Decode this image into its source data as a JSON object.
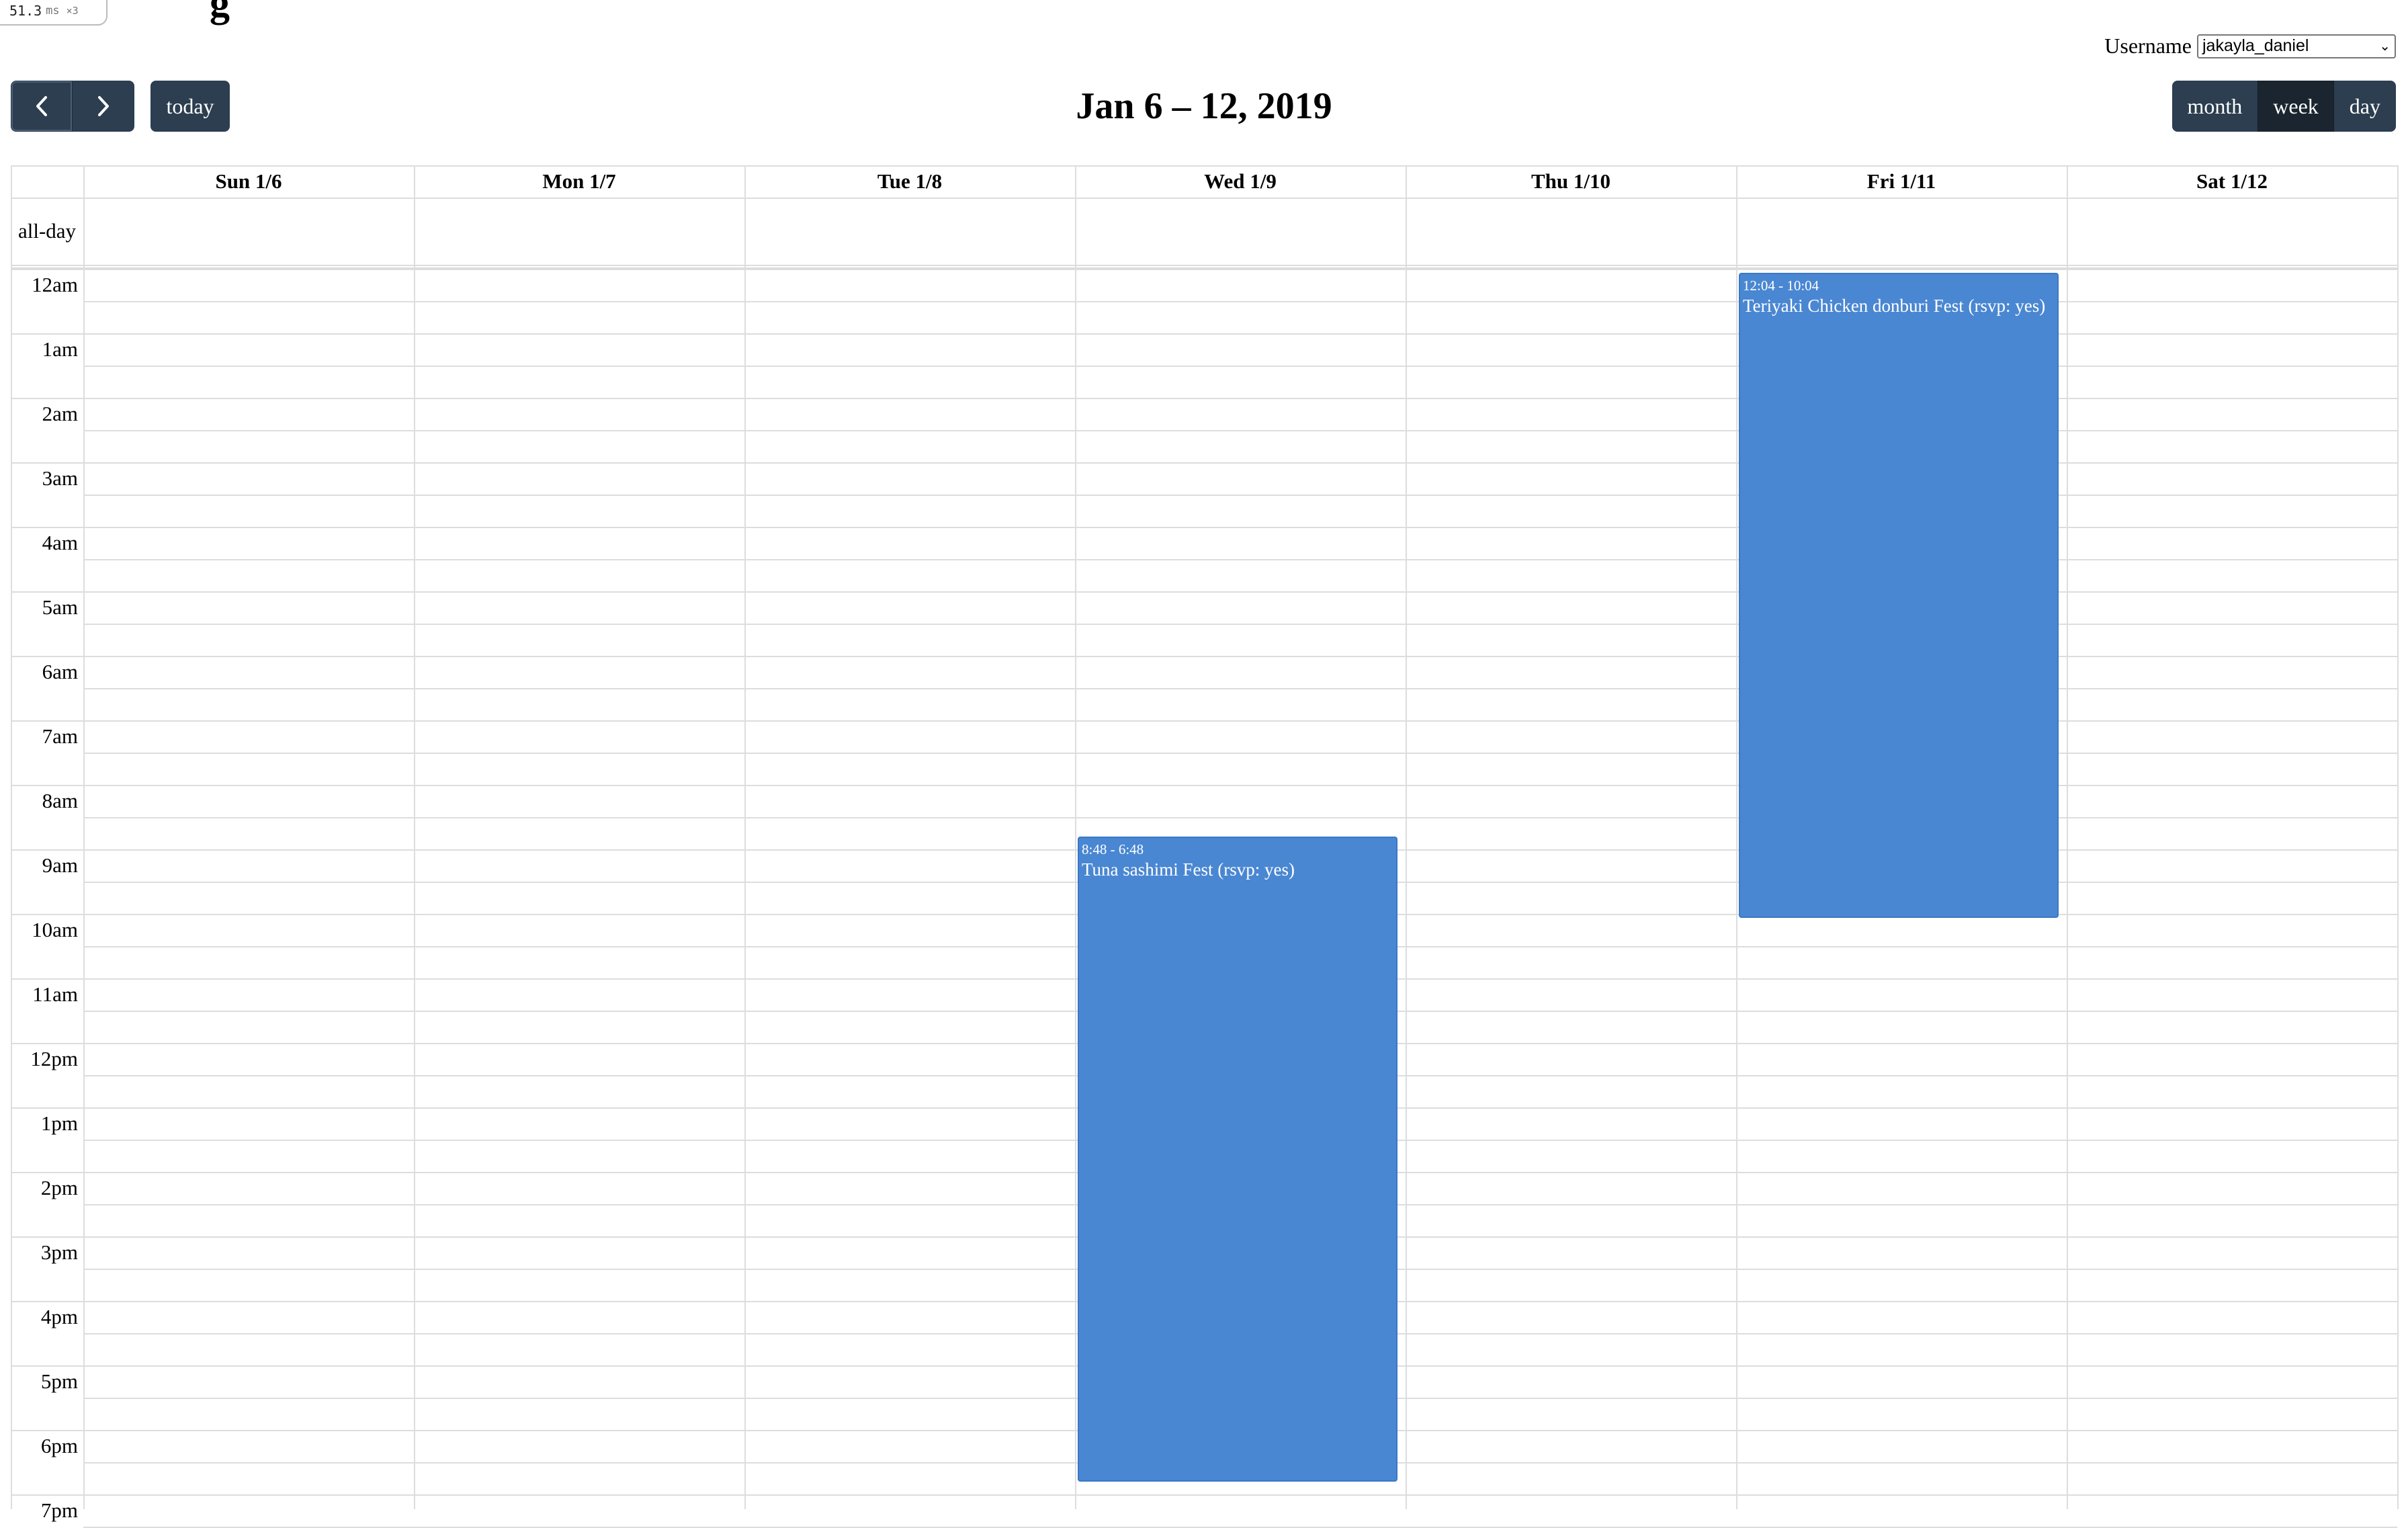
{
  "perf": {
    "value": "51.3",
    "unit": "ms",
    "mult": "×3"
  },
  "header": {
    "title_fragment": "g"
  },
  "user": {
    "label": "Username",
    "selected": "jakayla_daniel"
  },
  "toolbar": {
    "prev_label": "‹",
    "next_label": "›",
    "today_label": "today",
    "title": "Jan 6 – 12, 2019",
    "views": [
      {
        "label": "month",
        "active": false
      },
      {
        "label": "week",
        "active": true
      },
      {
        "label": "day",
        "active": false
      }
    ]
  },
  "calendar": {
    "allday_label": "all-day",
    "days": [
      "Sun 1/6",
      "Mon 1/7",
      "Tue 1/8",
      "Wed 1/9",
      "Thu 1/10",
      "Fri 1/11",
      "Sat 1/12"
    ],
    "hours": [
      "12am",
      "1am",
      "2am",
      "3am",
      "4am",
      "5am",
      "6am",
      "7am",
      "8am",
      "9am",
      "10am",
      "11am",
      "12pm",
      "1pm",
      "2pm",
      "3pm",
      "4pm",
      "5pm",
      "6pm",
      "7pm"
    ],
    "events": [
      {
        "day": 3,
        "start": 8.8,
        "end": 18.8,
        "time": "8:48 - 6:48",
        "title": "Tuna sashimi Fest (rsvp: yes)"
      },
      {
        "day": 5,
        "start": 0.067,
        "end": 10.067,
        "time": "12:04 - 10:04",
        "title": "Teriyaki Chicken donburi Fest (rsvp: yes)"
      }
    ]
  },
  "colors": {
    "button": "#2c3e50",
    "button_active": "#1a252f",
    "event": "#4a87d2",
    "grid": "#dddddd"
  }
}
